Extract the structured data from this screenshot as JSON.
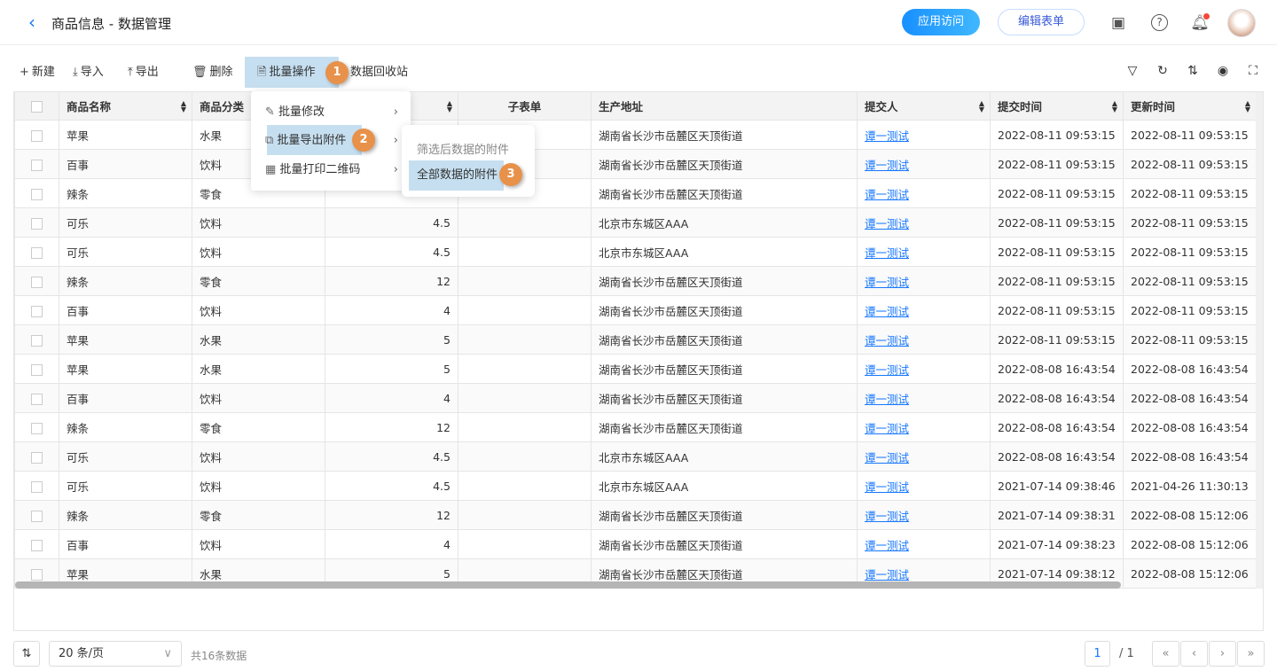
{
  "header": {
    "title": "商品信息 - 数据管理",
    "app_access": "应用访问",
    "edit_form": "编辑表单"
  },
  "toolbar": {
    "new": "新建",
    "import": "导入",
    "export": "导出",
    "delete": "删除",
    "batch": "批量操作",
    "recycle": "数据回收站"
  },
  "menu": {
    "items": [
      {
        "label": "批量修改",
        "icon": "edit-icon"
      },
      {
        "label": "批量导出附件",
        "icon": "export-attachment-icon"
      },
      {
        "label": "批量打印二维码",
        "icon": "qrcode-icon"
      }
    ],
    "submenu": [
      "筛选后数据的附件",
      "全部数据的附件"
    ]
  },
  "badges": [
    "1",
    "2",
    "3"
  ],
  "colors": {
    "accent": "#1677ff",
    "badge": "#e8914a",
    "highlight": "#c6dff0"
  },
  "table": {
    "columns": [
      "商品名称",
      "商品分类",
      "",
      "子表单",
      "生产地址",
      "提交人",
      "提交时间",
      "更新时间"
    ],
    "rows": [
      [
        "苹果",
        "水果",
        "",
        "",
        "湖南省长沙市岳麓区天顶街道",
        "谭一测试",
        "2022-08-11 09:53:15",
        "2022-08-11 09:53:15"
      ],
      [
        "百事",
        "饮料",
        "",
        "",
        "湖南省长沙市岳麓区天顶街道",
        "谭一测试",
        "2022-08-11 09:53:15",
        "2022-08-11 09:53:15"
      ],
      [
        "辣条",
        "零食",
        "",
        "",
        "湖南省长沙市岳麓区天顶街道",
        "谭一测试",
        "2022-08-11 09:53:15",
        "2022-08-11 09:53:15"
      ],
      [
        "可乐",
        "饮料",
        "4.5",
        "",
        "北京市东城区AAA",
        "谭一测试",
        "2022-08-11 09:53:15",
        "2022-08-11 09:53:15"
      ],
      [
        "可乐",
        "饮料",
        "4.5",
        "",
        "北京市东城区AAA",
        "谭一测试",
        "2022-08-11 09:53:15",
        "2022-08-11 09:53:15"
      ],
      [
        "辣条",
        "零食",
        "12",
        "",
        "湖南省长沙市岳麓区天顶街道",
        "谭一测试",
        "2022-08-11 09:53:15",
        "2022-08-11 09:53:15"
      ],
      [
        "百事",
        "饮料",
        "4",
        "",
        "湖南省长沙市岳麓区天顶街道",
        "谭一测试",
        "2022-08-11 09:53:15",
        "2022-08-11 09:53:15"
      ],
      [
        "苹果",
        "水果",
        "5",
        "",
        "湖南省长沙市岳麓区天顶街道",
        "谭一测试",
        "2022-08-11 09:53:15",
        "2022-08-11 09:53:15"
      ],
      [
        "苹果",
        "水果",
        "5",
        "",
        "湖南省长沙市岳麓区天顶街道",
        "谭一测试",
        "2022-08-08 16:43:54",
        "2022-08-08 16:43:54"
      ],
      [
        "百事",
        "饮料",
        "4",
        "",
        "湖南省长沙市岳麓区天顶街道",
        "谭一测试",
        "2022-08-08 16:43:54",
        "2022-08-08 16:43:54"
      ],
      [
        "辣条",
        "零食",
        "12",
        "",
        "湖南省长沙市岳麓区天顶街道",
        "谭一测试",
        "2022-08-08 16:43:54",
        "2022-08-08 16:43:54"
      ],
      [
        "可乐",
        "饮料",
        "4.5",
        "",
        "北京市东城区AAA",
        "谭一测试",
        "2022-08-08 16:43:54",
        "2022-08-08 16:43:54"
      ],
      [
        "可乐",
        "饮料",
        "4.5",
        "",
        "北京市东城区AAA",
        "谭一测试",
        "2021-07-14 09:38:46",
        "2021-04-26 11:30:13"
      ],
      [
        "辣条",
        "零食",
        "12",
        "",
        "湖南省长沙市岳麓区天顶街道",
        "谭一测试",
        "2021-07-14 09:38:31",
        "2022-08-08 15:12:06"
      ],
      [
        "百事",
        "饮料",
        "4",
        "",
        "湖南省长沙市岳麓区天顶街道",
        "谭一测试",
        "2021-07-14 09:38:23",
        "2022-08-08 15:12:06"
      ],
      [
        "苹果",
        "水果",
        "5",
        "",
        "湖南省长沙市岳麓区天顶街道",
        "谭一测试",
        "2021-07-14 09:38:12",
        "2022-08-08 15:12:06"
      ]
    ]
  },
  "footer": {
    "page_size": "20 条/页",
    "total": "共16条数据",
    "page": "1",
    "pages": "/ 1"
  }
}
